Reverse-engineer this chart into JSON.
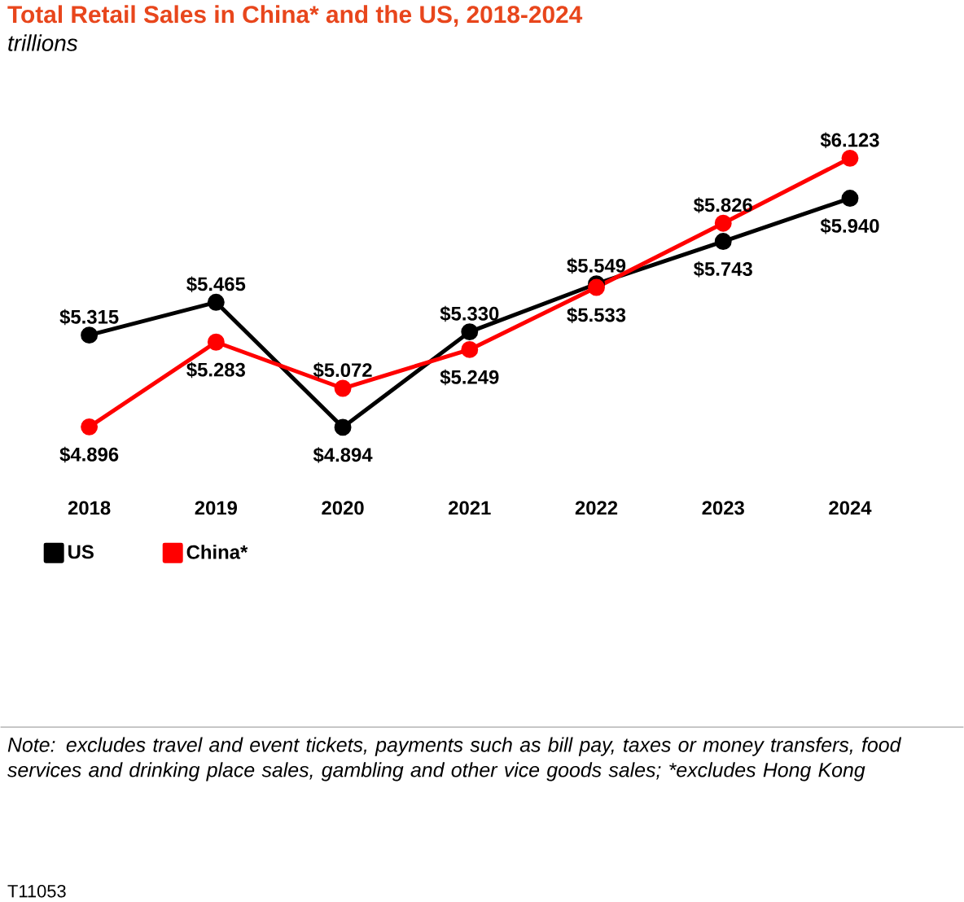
{
  "chart_data": {
    "type": "line",
    "title": "Total Retail Sales in China* and the US, 2018-2024",
    "subtitle": "trillions",
    "categories": [
      "2018",
      "2019",
      "2020",
      "2021",
      "2022",
      "2023",
      "2024"
    ],
    "series": [
      {
        "name": "US",
        "color": "#000000",
        "values": [
          5.315,
          5.465,
          4.894,
          5.33,
          5.549,
          5.743,
          5.94
        ],
        "value_labels": [
          "$5.315",
          "$5.465",
          "$4.894",
          "$5.330",
          "$5.549",
          "$5.743",
          "$5.940"
        ]
      },
      {
        "name": "China*",
        "color": "#ff0000",
        "values": [
          4.896,
          5.283,
          5.072,
          5.249,
          5.533,
          5.826,
          6.123
        ],
        "value_labels": [
          "$4.896",
          "$5.283",
          "$5.072",
          "$5.249",
          "$5.533",
          "$5.826",
          "$6.123"
        ]
      }
    ],
    "marker": "circle",
    "line_style": "solid",
    "legend": "bottom left",
    "grid": false,
    "annotations": [
      "Note: excludes travel and event tickets, payments such as bill pay, taxes or money transfers, food services and drinking place sales, gambling and other vice goods sales; *excludes Hong Kong",
      "T11053"
    ]
  }
}
